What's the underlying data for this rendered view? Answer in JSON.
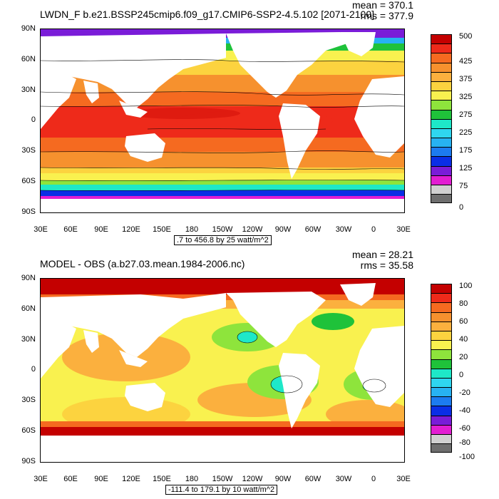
{
  "top": {
    "title": "LWDN_F b.e21.BSSP245cmip6.f09_g17.CMIP6-SSP2-4.5.102 [2071-2100]",
    "mean": "mean = 370.1",
    "rms": "rms = 377.9",
    "range": ".7 to 456.8 by 25 watt/m^2",
    "colorbar": {
      "labels": [
        "500",
        "425",
        "375",
        "325",
        "275",
        "225",
        "175",
        "125",
        "75",
        "0"
      ],
      "colors": [
        "#c40000",
        "#ee2a1a",
        "#f56a20",
        "#f6912e",
        "#fbb03e",
        "#fcd33f",
        "#f9f14f",
        "#8ee43c",
        "#1fc23a",
        "#1ee8c8",
        "#2fd6f0",
        "#27b2f2",
        "#1c7bf0",
        "#0a2ee6",
        "#7a1cd8",
        "#e21dd2",
        "#d0d0d0",
        "#6e6e6e"
      ]
    }
  },
  "bottom": {
    "title": "MODEL - OBS (a.b27.03.mean.1984-2006.nc)",
    "mean": "mean = 28.21",
    "rms": "rms = 35.58",
    "range": "-111.4 to 179.1 by 10 watt/m^2",
    "colorbar": {
      "labels": [
        "100",
        "80",
        "60",
        "40",
        "20",
        "0",
        "-20",
        "-40",
        "-60",
        "-80",
        "-100"
      ],
      "colors": [
        "#c40000",
        "#ee2a1a",
        "#f56a20",
        "#f6912e",
        "#fbb03e",
        "#fcd33f",
        "#f9f14f",
        "#8ee43c",
        "#1fc23a",
        "#1ee8c8",
        "#2fd6f0",
        "#27b2f2",
        "#1c7bf0",
        "#0a2ee6",
        "#7a1cd8",
        "#e21dd2",
        "#d0d0d0",
        "#6e6e6e"
      ]
    }
  },
  "axes": {
    "y_ticks": [
      "90N",
      "60N",
      "30N",
      "0",
      "30S",
      "60S",
      "90S"
    ],
    "x_ticks": [
      "30E",
      "60E",
      "90E",
      "120E",
      "150E",
      "180",
      "150W",
      "120W",
      "90W",
      "60W",
      "30W",
      "0",
      "30E"
    ]
  }
}
